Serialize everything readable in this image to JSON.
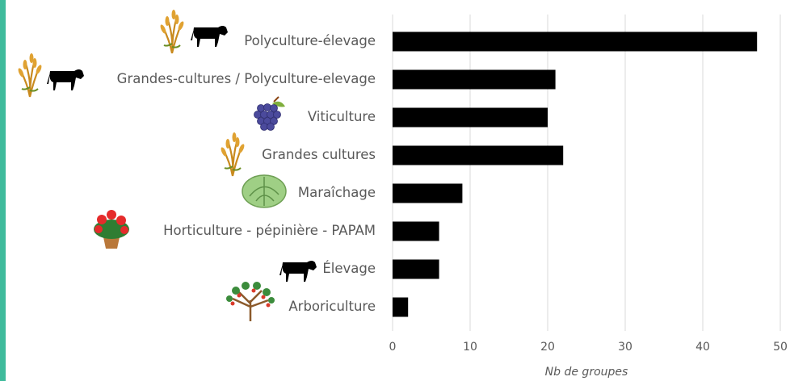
{
  "chart_data": {
    "type": "bar",
    "orientation": "horizontal",
    "categories": [
      "Polyculture-élevage",
      "Grandes-cultures / Polyculture-elevage",
      "Viticulture",
      "Grandes cultures",
      "Maraîchage",
      "Horticulture - pépinière - PAPAM",
      "Élevage",
      "Arboriculture"
    ],
    "values": [
      47,
      21,
      20,
      22,
      9,
      6,
      6,
      2
    ],
    "color": "#000000",
    "xlim": [
      0,
      50
    ],
    "xticks": [
      0,
      10,
      20,
      30,
      40,
      50
    ],
    "xlabel": "Nb de groupes",
    "grid": true
  }
}
